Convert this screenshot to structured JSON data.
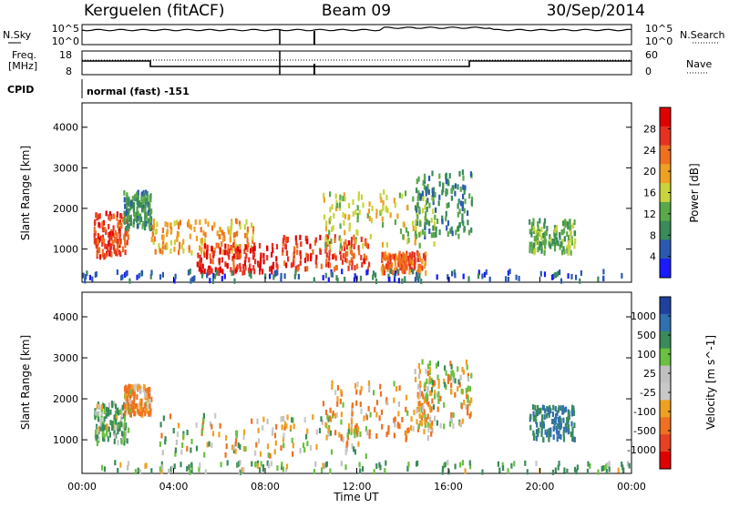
{
  "header": {
    "radar": "Kerguelen (fitACF)",
    "beam": "Beam 09",
    "date": "30/Sep/2014"
  },
  "status_panels": {
    "nsky_label": "N.Sky",
    "nsky_ticks": [
      "10^5",
      "10^0"
    ],
    "nsearch_label": "N.Search",
    "nsearch_ticks": [
      "10^5",
      "10^0"
    ],
    "freq_label_1": "Freq.",
    "freq_label_2": "[MHz]",
    "freq_ticks": [
      "18",
      "8"
    ],
    "nave_label": "Nave",
    "nave_ticks": [
      "60",
      "0"
    ],
    "cpid_label": "CPID",
    "cpid_value": "normal (fast) -151"
  },
  "x_axis": {
    "label": "Time UT",
    "ticks": [
      "00:00",
      "04:00",
      "08:00",
      "12:00",
      "16:00",
      "20:00",
      "00:00"
    ]
  },
  "colors": {
    "power": [
      "#1a1aff",
      "#2a5ab0",
      "#3a8a5a",
      "#5aa84a",
      "#c8d43a",
      "#f0a020",
      "#f07020",
      "#e83020",
      "#e00000"
    ],
    "velocity": [
      "#2040a0",
      "#3070b0",
      "#3a8a5a",
      "#6ac040",
      "#c0c0c0",
      "#c8c8c8",
      "#f0a020",
      "#f07020",
      "#e84020",
      "#e00000"
    ]
  },
  "chart_data": [
    {
      "type": "heatmap",
      "title": "Power",
      "ylabel": "Slant Range [km]",
      "xlabel": "",
      "ylim": [
        180,
        4600
      ],
      "yticks": [
        1000,
        2000,
        3000,
        4000
      ],
      "xlim": [
        0,
        24
      ],
      "colorbar": {
        "label": "Power [dB]",
        "ticks": [
          4,
          8,
          12,
          16,
          20,
          24,
          28
        ],
        "range": [
          0,
          32
        ]
      },
      "grid": false,
      "regions": [
        {
          "t0": 0.5,
          "t1": 2.0,
          "r0": 800,
          "r1": 1900,
          "value": 26
        },
        {
          "t0": 1.8,
          "t1": 3.0,
          "r0": 1500,
          "r1": 2400,
          "value": 10
        },
        {
          "t0": 3.0,
          "t1": 7.5,
          "r0": 900,
          "r1": 1700,
          "value": 20
        },
        {
          "t0": 5.0,
          "t1": 8.5,
          "r0": 400,
          "r1": 1100,
          "value": 28
        },
        {
          "t0": 8.7,
          "t1": 12.5,
          "r0": 500,
          "r1": 1300,
          "value": 26
        },
        {
          "t0": 10.5,
          "t1": 15.5,
          "r0": 1000,
          "r1": 2400,
          "value": 16
        },
        {
          "t0": 13.0,
          "t1": 15.0,
          "r0": 400,
          "r1": 900,
          "value": 24
        },
        {
          "t0": 14.5,
          "t1": 17.0,
          "r0": 1300,
          "r1": 2900,
          "value": 9
        },
        {
          "t0": 19.5,
          "t1": 21.5,
          "r0": 900,
          "r1": 1700,
          "value": 12
        },
        {
          "t0": 0.0,
          "t1": 24.0,
          "r0": 200,
          "r1": 450,
          "value": 6
        }
      ]
    },
    {
      "type": "heatmap",
      "title": "Velocity",
      "ylabel": "Slant Range [km]",
      "xlabel": "Time UT",
      "ylim": [
        180,
        4600
      ],
      "yticks": [
        1000,
        2000,
        3000,
        4000
      ],
      "xlim": [
        0,
        24
      ],
      "colorbar": {
        "label": "Velocity [m s^-1]",
        "ticks": [
          1000,
          500,
          100,
          25,
          -25,
          -100,
          -500,
          -1000
        ]
      },
      "grid": false,
      "regions": [
        {
          "t0": 0.5,
          "t1": 2.0,
          "r0": 900,
          "r1": 1900,
          "value": 100
        },
        {
          "t0": 1.8,
          "t1": 3.0,
          "r0": 1600,
          "r1": 2300,
          "value": -100
        },
        {
          "t0": 3.0,
          "t1": 12.5,
          "r0": 600,
          "r1": 1600,
          "value": 0
        },
        {
          "t0": 10.5,
          "t1": 15.5,
          "r0": 1000,
          "r1": 2400,
          "value": -100
        },
        {
          "t0": 14.5,
          "t1": 17.0,
          "r0": 1300,
          "r1": 2900,
          "value": 0
        },
        {
          "t0": 19.5,
          "t1": 21.5,
          "r0": 1000,
          "r1": 1800,
          "value": 500
        },
        {
          "t0": 0.0,
          "t1": 24.0,
          "r0": 200,
          "r1": 450,
          "value": 100
        }
      ]
    }
  ]
}
